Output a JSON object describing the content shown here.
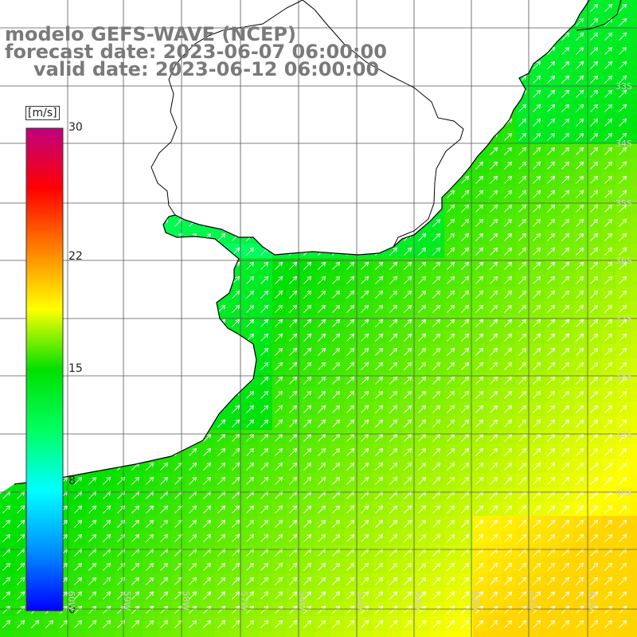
{
  "title": {
    "line1": "modelo GEFS-WAVE (NCEP)",
    "line2": "forecast date: 2023-06-07 06:00:00",
    "line3": "valid date: 2023-06-12 06:00:00"
  },
  "colorbar": {
    "unit": "[m/s]",
    "min": 0,
    "max": 30,
    "ticks": [
      {
        "value": 30,
        "label": "30"
      },
      {
        "value": 22,
        "label": "22"
      },
      {
        "value": 15,
        "label": "15"
      },
      {
        "value": 8,
        "label": "8"
      },
      {
        "value": 0,
        "label": "0"
      }
    ],
    "stops": [
      "#0000ff",
      "#0090ff",
      "#00ffff",
      "#00ff60",
      "#00e000",
      "#ffff00",
      "#ff8000",
      "#ff0000",
      "#c00080"
    ]
  },
  "lat_labels": [
    "33S",
    "34S",
    "35S",
    "36S",
    "37S",
    "38S",
    "39S",
    "40S"
  ],
  "lon_labels": [
    "60W",
    "59W",
    "58W",
    "57W",
    "56W",
    "55W",
    "54W",
    "53W",
    "52W",
    "51W"
  ],
  "field_description": "wind speed field, values read in m/s",
  "wind": {
    "direction_to_deg": 45,
    "speed_range_ms": [
      8,
      20
    ]
  },
  "colors": {
    "land": "#ffffff",
    "grid": "#555555",
    "coast": "#000000",
    "arrow": "#ffffff",
    "title": "#7a7a7a"
  }
}
